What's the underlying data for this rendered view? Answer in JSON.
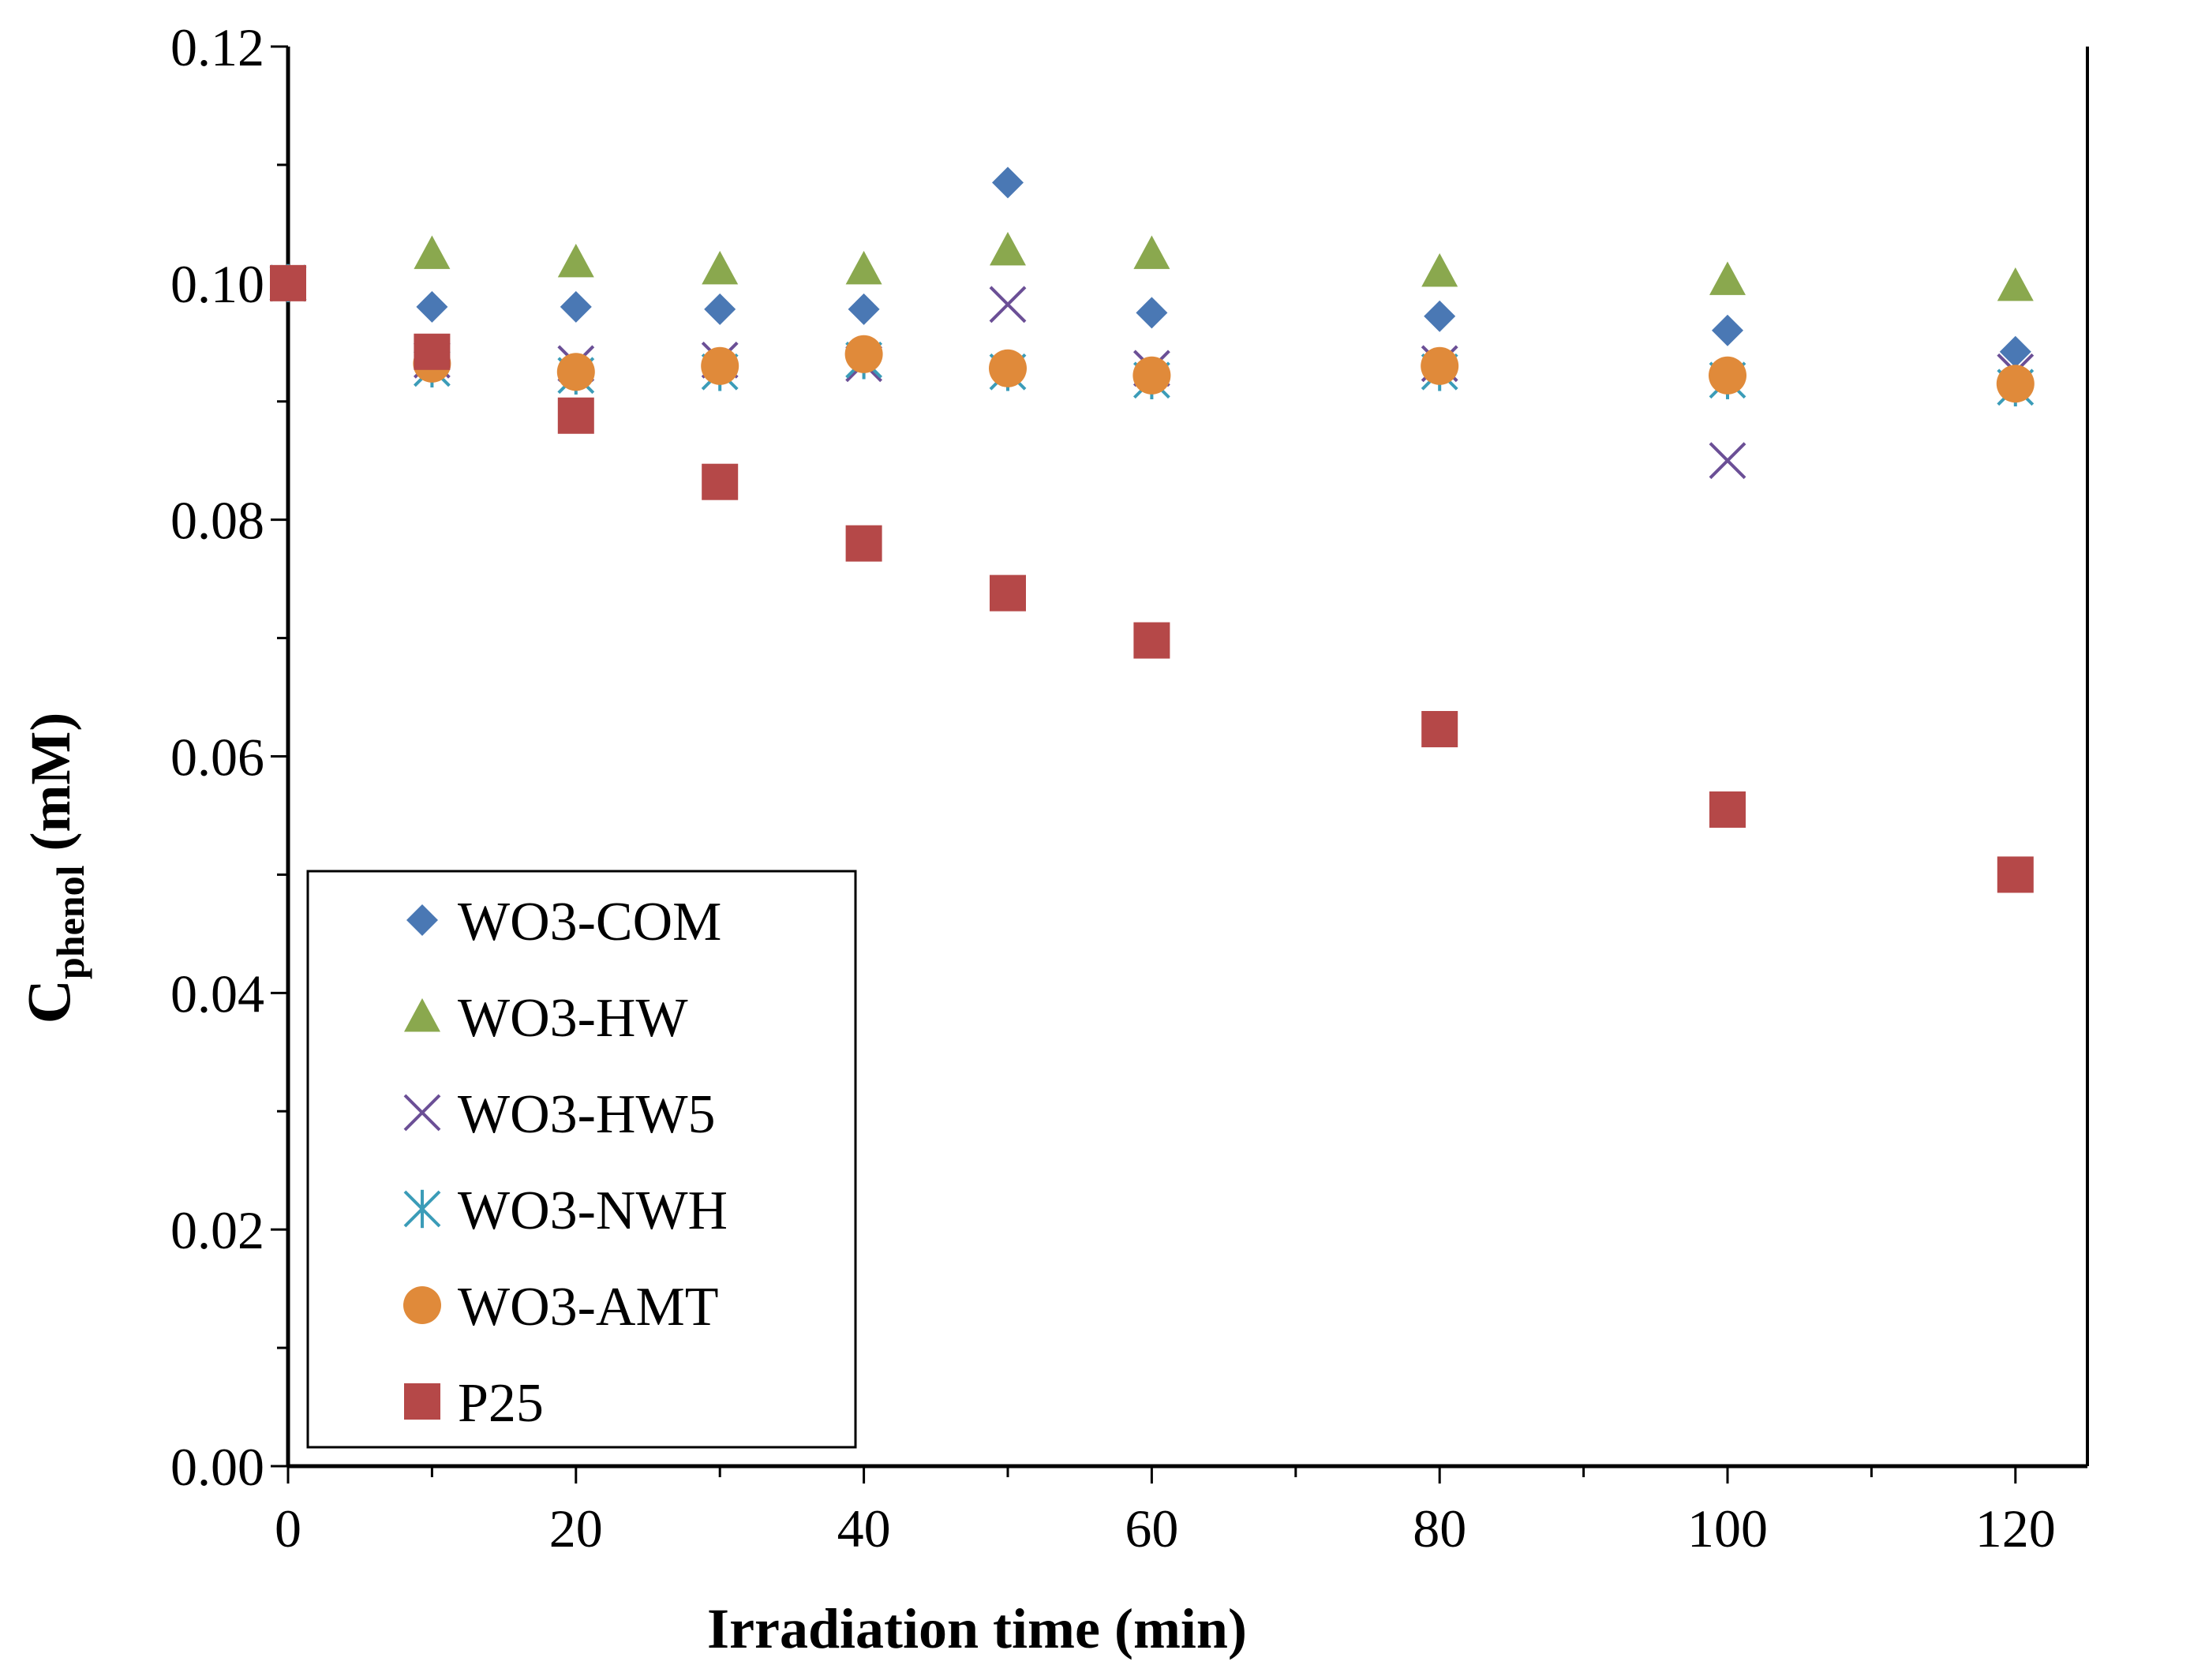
{
  "chart_data": {
    "type": "scatter",
    "title": "",
    "xlabel": "Irradiation  time (min)",
    "ylabel": {
      "main": "C",
      "subscript": "phenol",
      "suffix": " (mM)"
    },
    "xlim": [
      0,
      125
    ],
    "ylim": [
      0,
      0.12
    ],
    "x_ticks": [
      "0",
      "20",
      "40",
      "60",
      "80",
      "100",
      "120"
    ],
    "y_ticks": [
      "0.00",
      "0.02",
      "0.04",
      "0.06",
      "0.08",
      "0.10",
      "0.12"
    ],
    "legend_position": "bottom-left",
    "grid": false,
    "series": [
      {
        "name": "WO3-COM",
        "marker": "diamond",
        "color": "#4a78b4",
        "x": [
          0,
          10,
          20,
          30,
          40,
          50,
          60,
          80,
          100,
          120
        ],
        "y": [
          0.1,
          0.098,
          0.098,
          0.0978,
          0.0978,
          0.1085,
          0.0975,
          0.0972,
          0.096,
          0.0942
        ]
      },
      {
        "name": "WO3-HW",
        "marker": "triangle",
        "color": "#8aa84e",
        "x": [
          0,
          10,
          20,
          30,
          40,
          50,
          60,
          80,
          100,
          120
        ],
        "y": [
          0.1,
          0.1025,
          0.1018,
          0.1012,
          0.1012,
          0.1028,
          0.1025,
          0.101,
          0.1003,
          0.0998
        ]
      },
      {
        "name": "WO3-HW5",
        "marker": "x",
        "color": "#6b4f96",
        "x": [
          0,
          10,
          20,
          30,
          40,
          50,
          60,
          80,
          100,
          120
        ],
        "y": [
          0.1,
          0.0935,
          0.0932,
          0.0935,
          0.0932,
          0.0982,
          0.0928,
          0.0932,
          0.085,
          0.0925
        ]
      },
      {
        "name": "WO3-NWH",
        "marker": "asterisk",
        "color": "#3b9cb8",
        "x": [
          0,
          10,
          20,
          30,
          40,
          50,
          60,
          80,
          100,
          120
        ],
        "y": [
          0.1,
          0.0928,
          0.0922,
          0.0925,
          0.0935,
          0.0925,
          0.0918,
          0.0925,
          0.0918,
          0.0912
        ]
      },
      {
        "name": "WO3-AMT",
        "marker": "circle",
        "color": "#e08a3a",
        "x": [
          10,
          20,
          30,
          40,
          50,
          60,
          80,
          100,
          120
        ],
        "y": [
          0.0932,
          0.0925,
          0.093,
          0.094,
          0.0928,
          0.0922,
          0.093,
          0.0922,
          0.0915
        ]
      },
      {
        "name": "P25",
        "marker": "square",
        "color": "#b54848",
        "x": [
          0,
          10,
          20,
          30,
          40,
          50,
          60,
          80,
          100,
          120
        ],
        "y": [
          0.1,
          0.0942,
          0.0888,
          0.0832,
          0.078,
          0.0738,
          0.0698,
          0.0623,
          0.0555,
          0.05
        ]
      }
    ]
  }
}
